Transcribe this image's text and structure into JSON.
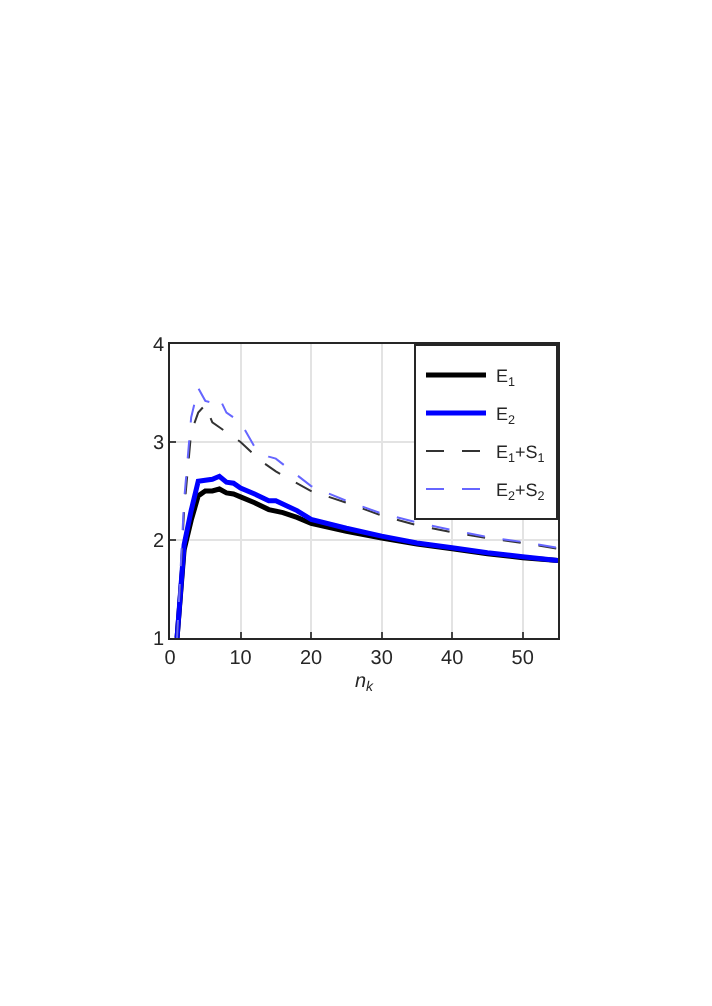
{
  "chart_data": {
    "type": "line",
    "xlabel": "n$_{k}$",
    "xlim": [
      0,
      55
    ],
    "xticks": [
      0,
      10,
      20,
      30,
      40,
      50
    ],
    "ylim": [
      1,
      4
    ],
    "yticks": [
      1,
      2,
      3,
      4
    ],
    "grid": true,
    "legend": "top right",
    "marker": "none",
    "series": [
      {
        "name": "E$_{1}$",
        "color": "#000000",
        "line_style": "solid",
        "x": [
          1,
          2,
          3,
          4,
          5,
          6,
          7,
          8,
          9,
          10,
          12,
          14,
          16,
          18,
          20,
          25,
          30,
          35,
          40,
          45,
          50,
          55
        ],
        "values": [
          1.0,
          1.9,
          2.2,
          2.45,
          2.5,
          2.5,
          2.52,
          2.48,
          2.47,
          2.44,
          2.38,
          2.31,
          2.28,
          2.23,
          2.17,
          2.09,
          2.02,
          1.96,
          1.91,
          1.86,
          1.82,
          1.79
        ]
      },
      {
        "name": "E$_{2}$",
        "color": "#0000ff",
        "line_style": "solid",
        "x": [
          1,
          2,
          3,
          4,
          5,
          6,
          7,
          8,
          9,
          10,
          12,
          14,
          15,
          18,
          20,
          25,
          30,
          35,
          40,
          45,
          50,
          55
        ],
        "values": [
          1.0,
          1.95,
          2.3,
          2.6,
          2.61,
          2.62,
          2.65,
          2.59,
          2.58,
          2.53,
          2.47,
          2.4,
          2.4,
          2.3,
          2.21,
          2.12,
          2.04,
          1.97,
          1.92,
          1.87,
          1.83,
          1.79
        ]
      },
      {
        "name": "E$_{1}$+S$_{1}$",
        "color": "#333333",
        "line_style": "dashed",
        "x": [
          1,
          2,
          3,
          4,
          5,
          6,
          7,
          10,
          13,
          15,
          20,
          25,
          30,
          35,
          40,
          45,
          50,
          55
        ],
        "values": [
          1.0,
          2.3,
          3.1,
          3.3,
          3.38,
          3.2,
          3.15,
          3.0,
          2.8,
          2.7,
          2.5,
          2.38,
          2.25,
          2.15,
          2.08,
          2.02,
          1.97,
          1.91
        ]
      },
      {
        "name": "E$_{2}$+S$_{2}$",
        "color": "#6666ff",
        "line_style": "dashed",
        "x": [
          1,
          2,
          3,
          4,
          5,
          6,
          7,
          8,
          9,
          10,
          12,
          14,
          15,
          20,
          25,
          30,
          35,
          40,
          45,
          50,
          55
        ],
        "values": [
          1.0,
          2.4,
          3.25,
          3.55,
          3.42,
          3.4,
          3.45,
          3.3,
          3.25,
          3.2,
          2.95,
          2.85,
          2.83,
          2.55,
          2.4,
          2.27,
          2.18,
          2.1,
          2.03,
          1.98,
          1.92
        ]
      }
    ]
  }
}
